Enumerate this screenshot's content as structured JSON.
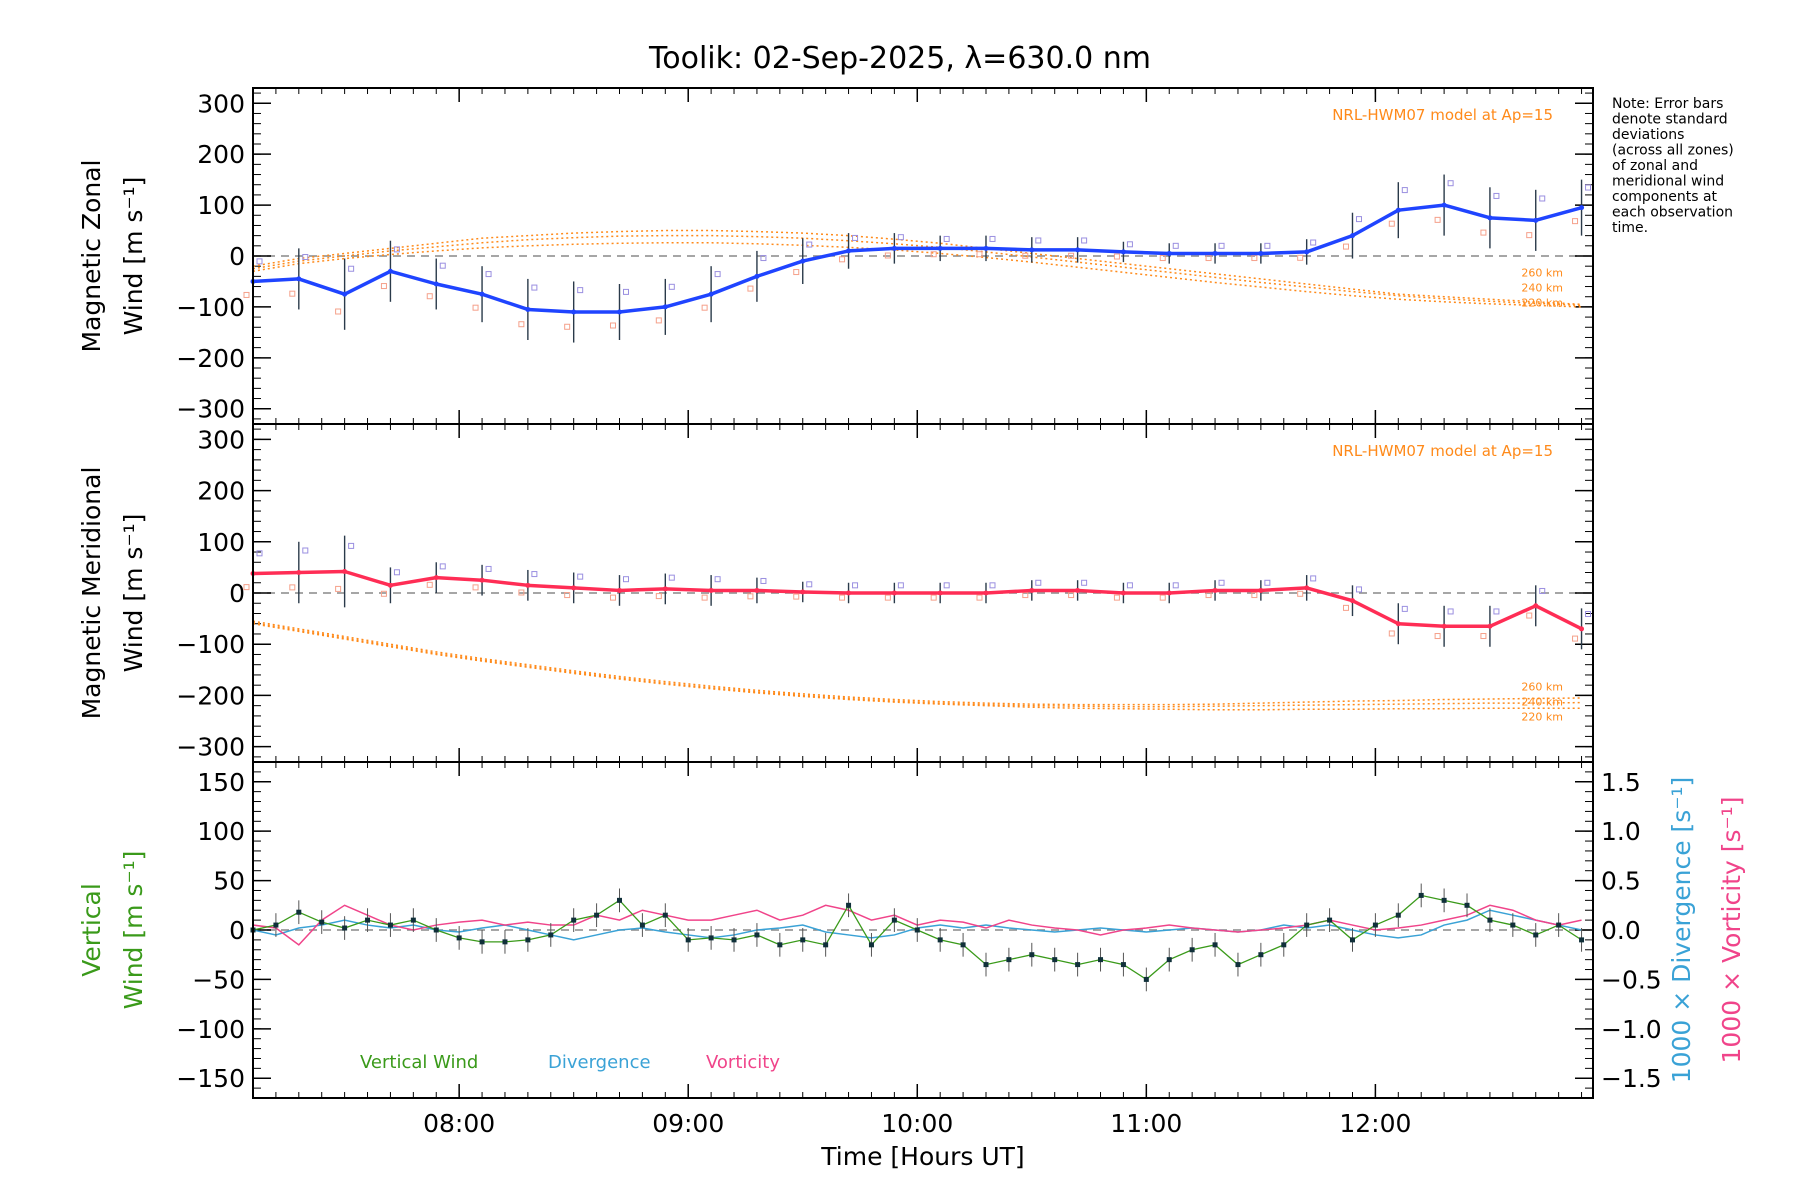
{
  "title": "Toolik: 02-Sep-2025, λ=630.0 nm",
  "note": [
    "Note: Error bars",
    "denote standard",
    "deviations",
    "(across all zones)",
    "of zonal and",
    "meridional wind",
    "components at",
    "each observation",
    "time."
  ],
  "colors": {
    "zonal": "#1f44ff",
    "meridional": "#ff2d55",
    "vertical": "#3a9a1a",
    "divergence": "#3aa2d6",
    "vorticity": "#f0448a",
    "model": "#ff8a1a",
    "axis": "#000000"
  },
  "chart_data": [
    {
      "type": "line",
      "panel": "zonal",
      "ylabel": [
        "Magnetic Zonal",
        "Wind [m s⁻¹]"
      ],
      "ylim": [
        -330,
        330
      ],
      "yticks": [
        "300",
        "200",
        "100",
        "0",
        "−100",
        "−200",
        "−300"
      ],
      "ytick_values": [
        300,
        200,
        100,
        0,
        -100,
        -200,
        -300
      ],
      "model_label": "NRL-HWM07 model at Ap=15",
      "model_alt_labels": [
        "260 km",
        "240 km",
        "220 km"
      ],
      "x": [
        7.1,
        7.3,
        7.5,
        7.7,
        7.9,
        8.1,
        8.3,
        8.5,
        8.7,
        8.9,
        9.1,
        9.3,
        9.5,
        9.7,
        9.9,
        10.1,
        10.3,
        10.5,
        10.7,
        10.9,
        11.1,
        11.3,
        11.5,
        11.7,
        11.9,
        12.1,
        12.3,
        12.5,
        12.7,
        12.9
      ],
      "series": [
        {
          "name": "Magnetic Zonal Wind",
          "values": [
            -50,
            -45,
            -75,
            -30,
            -55,
            -75,
            -105,
            -110,
            -110,
            -100,
            -75,
            -40,
            -10,
            10,
            15,
            15,
            15,
            12,
            12,
            8,
            5,
            5,
            5,
            8,
            40,
            90,
            100,
            75,
            70,
            95
          ],
          "errors": [
            55,
            60,
            70,
            60,
            50,
            55,
            60,
            60,
            55,
            55,
            55,
            50,
            45,
            35,
            30,
            25,
            25,
            25,
            25,
            20,
            20,
            20,
            20,
            25,
            45,
            55,
            60,
            60,
            60,
            55
          ]
        }
      ],
      "model": [
        {
          "name": "260 km",
          "values": [
            -20,
            -5,
            5,
            15,
            25,
            35,
            40,
            45,
            48,
            50,
            50,
            48,
            45,
            40,
            33,
            25,
            15,
            5,
            -5,
            -15,
            -25,
            -35,
            -45,
            -55,
            -65,
            -75,
            -80,
            -85,
            -90,
            -95
          ]
        },
        {
          "name": "240 km",
          "values": [
            -25,
            -10,
            0,
            10,
            18,
            26,
            32,
            36,
            39,
            40,
            40,
            38,
            35,
            30,
            24,
            17,
            8,
            -2,
            -12,
            -22,
            -32,
            -42,
            -52,
            -61,
            -70,
            -78,
            -84,
            -89,
            -93,
            -97
          ]
        },
        {
          "name": "220 km",
          "values": [
            -30,
            -15,
            -5,
            3,
            10,
            16,
            20,
            23,
            25,
            26,
            26,
            24,
            21,
            17,
            12,
            5,
            -3,
            -12,
            -22,
            -32,
            -42,
            -52,
            -61,
            -70,
            -78,
            -85,
            -90,
            -94,
            -97,
            -100
          ]
        }
      ]
    },
    {
      "type": "line",
      "panel": "meridional",
      "ylabel": [
        "Magnetic Meridional",
        "Wind [m s⁻¹]"
      ],
      "ylim": [
        -330,
        330
      ],
      "yticks": [
        "300",
        "200",
        "100",
        "0",
        "−100",
        "−200",
        "−300"
      ],
      "ytick_values": [
        300,
        200,
        100,
        0,
        -100,
        -200,
        -300
      ],
      "model_label": "NRL-HWM07 model at Ap=15",
      "model_alt_labels": [
        "260 km",
        "240 km",
        "220 km"
      ],
      "x": [
        7.1,
        7.3,
        7.5,
        7.7,
        7.9,
        8.1,
        8.3,
        8.5,
        8.7,
        8.9,
        9.1,
        9.3,
        9.5,
        9.7,
        9.9,
        10.1,
        10.3,
        10.5,
        10.7,
        10.9,
        11.1,
        11.3,
        11.5,
        11.7,
        11.9,
        12.1,
        12.3,
        12.5,
        12.7,
        12.9
      ],
      "series": [
        {
          "name": "Magnetic Meridional Wind",
          "values": [
            38,
            40,
            42,
            15,
            30,
            25,
            15,
            10,
            5,
            8,
            5,
            5,
            2,
            0,
            0,
            0,
            0,
            5,
            5,
            0,
            0,
            5,
            5,
            10,
            -15,
            -60,
            -65,
            -65,
            -25,
            -70
          ],
          "errors": [
            55,
            60,
            70,
            35,
            30,
            30,
            30,
            30,
            30,
            30,
            30,
            25,
            20,
            20,
            20,
            20,
            20,
            20,
            20,
            20,
            20,
            20,
            20,
            25,
            30,
            40,
            40,
            40,
            40,
            40
          ]
        }
      ],
      "model": [
        {
          "name": "260 km",
          "values": [
            -55,
            -70,
            -85,
            -100,
            -115,
            -128,
            -140,
            -152,
            -163,
            -173,
            -182,
            -190,
            -197,
            -203,
            -208,
            -212,
            -215,
            -217,
            -218,
            -218,
            -218,
            -217,
            -215,
            -213,
            -211,
            -210,
            -208,
            -207,
            -206,
            -205
          ]
        },
        {
          "name": "240 km",
          "values": [
            -58,
            -73,
            -88,
            -103,
            -118,
            -131,
            -143,
            -155,
            -166,
            -176,
            -185,
            -193,
            -200,
            -206,
            -211,
            -215,
            -218,
            -220,
            -221,
            -222,
            -222,
            -221,
            -220,
            -219,
            -218,
            -217,
            -216,
            -215,
            -215,
            -214
          ]
        },
        {
          "name": "220 km",
          "values": [
            -60,
            -75,
            -90,
            -105,
            -120,
            -133,
            -145,
            -157,
            -168,
            -178,
            -187,
            -195,
            -202,
            -208,
            -213,
            -217,
            -220,
            -223,
            -225,
            -226,
            -227,
            -228,
            -228,
            -227,
            -227,
            -226,
            -226,
            -225,
            -225,
            -225
          ]
        }
      ]
    },
    {
      "type": "line",
      "panel": "vertical",
      "ylabel": [
        "Vertical",
        "Wind [m s⁻¹]"
      ],
      "ylim": [
        -170,
        170
      ],
      "yticks": [
        "150",
        "100",
        "50",
        "0",
        "−50",
        "−100",
        "−150"
      ],
      "ytick_values": [
        150,
        100,
        50,
        0,
        -50,
        -100,
        -150
      ],
      "y2label": [
        "1000 × Divergence [s⁻¹]",
        "1000 × Vorticity [s⁻¹]"
      ],
      "y2lim": [
        -1.7,
        1.7
      ],
      "y2ticks": [
        "1.5",
        "1.0",
        "0.5",
        "0.0",
        "−0.5",
        "−1.0",
        "−1.5"
      ],
      "y2tick_values": [
        1.5,
        1.0,
        0.5,
        0.0,
        -0.5,
        -1.0,
        -1.5
      ],
      "legend": [
        "Vertical Wind",
        "Divergence",
        "Vorticity"
      ],
      "x": [
        7.1,
        7.2,
        7.3,
        7.4,
        7.5,
        7.6,
        7.7,
        7.8,
        7.9,
        8.0,
        8.1,
        8.2,
        8.3,
        8.4,
        8.5,
        8.6,
        8.7,
        8.8,
        8.9,
        9.0,
        9.1,
        9.2,
        9.3,
        9.4,
        9.5,
        9.6,
        9.7,
        9.8,
        9.9,
        10.0,
        10.1,
        10.2,
        10.3,
        10.4,
        10.5,
        10.6,
        10.7,
        10.8,
        10.9,
        11.0,
        11.1,
        11.2,
        11.3,
        11.4,
        11.5,
        11.6,
        11.7,
        11.8,
        11.9,
        12.0,
        12.1,
        12.2,
        12.3,
        12.4,
        12.5,
        12.6,
        12.7,
        12.8,
        12.9
      ],
      "series": [
        {
          "name": "Vertical Wind",
          "values": [
            0,
            5,
            18,
            8,
            2,
            10,
            5,
            10,
            0,
            -8,
            -12,
            -12,
            -10,
            -5,
            10,
            15,
            30,
            5,
            15,
            -10,
            -8,
            -10,
            -5,
            -15,
            -10,
            -15,
            25,
            -15,
            10,
            0,
            -10,
            -15,
            -35,
            -30,
            -25,
            -30,
            -35,
            -30,
            -35,
            -50,
            -30,
            -20,
            -15,
            -35,
            -25,
            -15,
            5,
            10,
            -10,
            5,
            15,
            35,
            30,
            25,
            10,
            5,
            -5,
            5,
            -10
          ]
        },
        {
          "name": "Divergence",
          "values": [
            0.0,
            -0.05,
            0.02,
            0.05,
            0.1,
            0.05,
            0.02,
            0.05,
            0.0,
            -0.02,
            0.02,
            0.05,
            0.0,
            -0.05,
            -0.1,
            -0.05,
            0.0,
            0.02,
            -0.02,
            -0.05,
            -0.08,
            -0.05,
            0.0,
            0.02,
            0.05,
            -0.02,
            -0.05,
            -0.08,
            -0.05,
            0.02,
            0.05,
            0.02,
            0.05,
            0.02,
            0.0,
            -0.02,
            0.0,
            0.02,
            0.0,
            -0.02,
            0.0,
            0.02,
            0.0,
            -0.02,
            0.0,
            0.05,
            0.02,
            0.05,
            0.0,
            -0.05,
            -0.08,
            -0.05,
            0.05,
            0.1,
            0.2,
            0.15,
            0.1,
            0.05,
            0.0
          ]
        },
        {
          "name": "Vorticity",
          "values": [
            0.05,
            0.02,
            -0.15,
            0.1,
            0.25,
            0.15,
            0.05,
            0.0,
            0.05,
            0.08,
            0.1,
            0.05,
            0.08,
            0.05,
            0.05,
            0.15,
            0.1,
            0.2,
            0.15,
            0.1,
            0.1,
            0.15,
            0.2,
            0.1,
            0.15,
            0.25,
            0.2,
            0.1,
            0.15,
            0.05,
            0.1,
            0.08,
            0.02,
            0.1,
            0.05,
            0.02,
            0.0,
            -0.05,
            0.0,
            0.02,
            0.05,
            0.02,
            0.0,
            -0.02,
            0.0,
            0.02,
            0.05,
            0.1,
            0.05,
            0.0,
            0.02,
            0.05,
            0.1,
            0.15,
            0.25,
            0.2,
            0.1,
            0.05,
            0.1
          ]
        }
      ]
    }
  ],
  "xaxis": {
    "label": "Time [Hours UT]",
    "xlim": [
      7.1,
      12.95
    ],
    "ticks": [
      "08:00",
      "09:00",
      "10:00",
      "11:00",
      "12:00"
    ],
    "tick_values": [
      8,
      9,
      10,
      11,
      12
    ]
  }
}
